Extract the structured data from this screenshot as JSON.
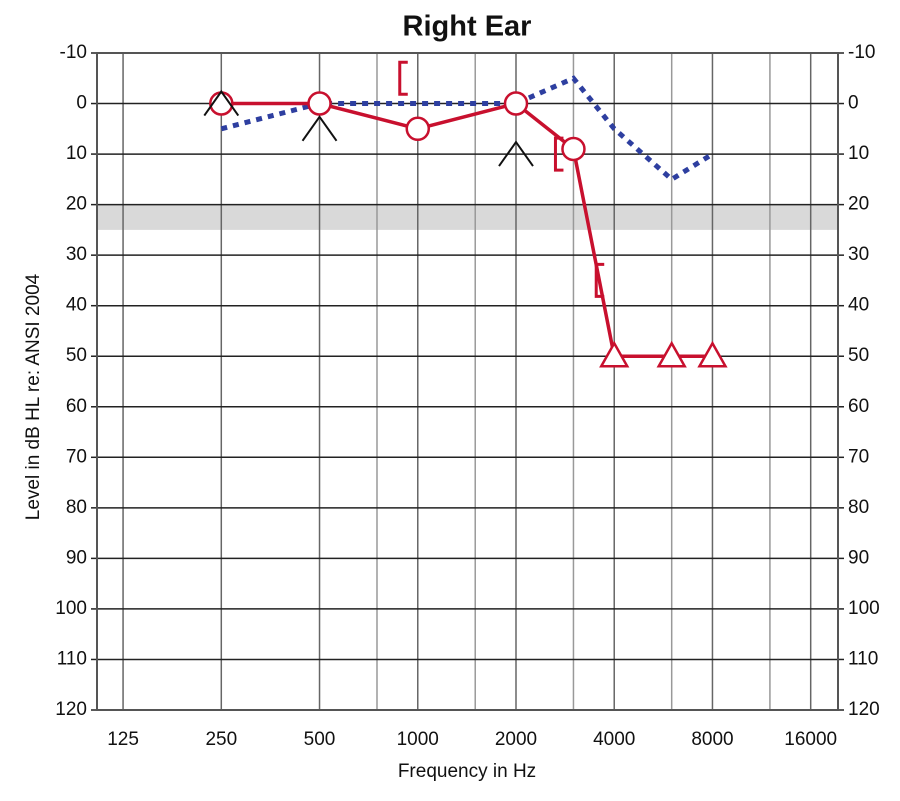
{
  "chart_data": {
    "type": "line",
    "title": "Right Ear",
    "xlabel": "Frequency in Hz",
    "ylabel": "Level in dB HL re: ANSI 2004",
    "xscale": "log",
    "xlim": [
      104,
      19400
    ],
    "xticks": [
      125,
      250,
      500,
      1000,
      2000,
      4000,
      8000,
      16000
    ],
    "xminor": [
      750,
      1500,
      3000,
      6000,
      12000
    ],
    "ylim": [
      -10,
      120
    ],
    "yinverted": true,
    "yticks": [
      -10,
      0,
      10,
      20,
      30,
      40,
      50,
      60,
      70,
      80,
      90,
      100,
      110,
      120
    ],
    "grid": true,
    "band": [
      20,
      25
    ],
    "series": [
      {
        "color": "#2e3fa0",
        "line": "dotted",
        "x": [
          250,
          500,
          1000,
          2000,
          3000,
          4000,
          6000,
          8000
        ],
        "values": [
          5,
          0,
          0,
          0,
          -5,
          5,
          15,
          10
        ]
      },
      {
        "color": "#c8102e",
        "line": "solid",
        "x": [
          250,
          500,
          1000,
          2000,
          3000,
          4000,
          6000,
          8000
        ],
        "values": [
          0,
          0,
          5,
          0,
          9,
          50,
          50,
          50
        ],
        "markers": [
          "circle",
          "circle",
          "circle",
          "circle",
          "circle",
          "triangle",
          "triangle",
          "triangle"
        ]
      },
      {
        "color": "#111111",
        "line": "none",
        "marker": "caret",
        "x": [
          250,
          500,
          2000
        ],
        "values": [
          0,
          5,
          10
        ]
      },
      {
        "color": "#c8102e",
        "line": "none",
        "marker": "bracket",
        "x": [
          1000,
          3000,
          4000
        ],
        "values": [
          -5,
          10,
          35
        ]
      }
    ]
  }
}
